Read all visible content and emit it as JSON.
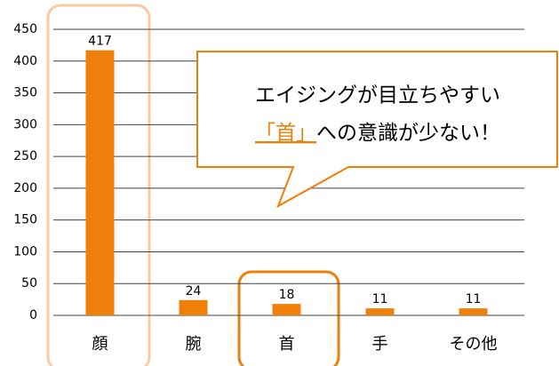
{
  "chart_data": {
    "type": "bar",
    "categories": [
      "顔",
      "腕",
      "首",
      "手",
      "その他"
    ],
    "values": [
      417,
      24,
      18,
      11,
      11
    ],
    "color": "#f07f09",
    "ylim": [
      0,
      450
    ],
    "yticks": [
      0,
      50,
      100,
      150,
      200,
      250,
      300,
      350,
      400,
      450
    ],
    "grid": true,
    "annotation": {
      "line1": "エイジングが目立ちやすい",
      "highlight": "「首」",
      "line2": "への意識が少ない！"
    }
  }
}
